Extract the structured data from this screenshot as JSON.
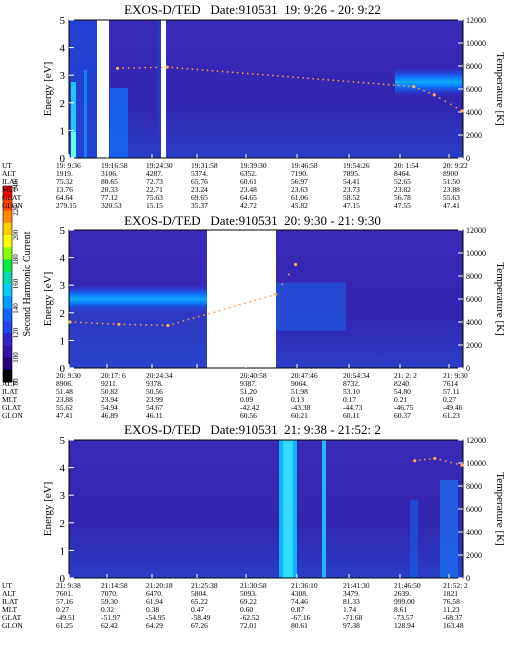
{
  "panels": [
    {
      "title": "EXOS-D/TED   Date:910531  19: 9:26 - 20: 9:22",
      "time_ticks": [
        "19: 9:36",
        "19:16:58",
        "19:24:30",
        "19:31:58",
        "19:39:30",
        "19:46:58",
        "19:54:26",
        "20: 1:54",
        "20: 9:22"
      ],
      "orbit": {
        "ALT": [
          "1919.",
          "3106.",
          "4287.",
          "5374.",
          "6352.",
          "7190.",
          "7895.",
          "8464.",
          "8900"
        ],
        "ILAT": [
          "75.32",
          "80.65",
          "72.73",
          "65.76",
          "60.61",
          "56.97",
          "54.41",
          "52.65",
          "51.50"
        ],
        "MLT": [
          "13.76",
          "20.33",
          "22.71",
          "23.24",
          "23.48",
          "23.63",
          "23.73",
          "23.82",
          "23.88"
        ],
        "GLAT": [
          "64.64",
          "77.12",
          "75.63",
          "69.65",
          "64.65",
          "61.06",
          "58.52",
          "56.78",
          "55.63"
        ],
        "GLON": [
          "279.15",
          "320.53",
          "15.15",
          "35.37",
          "42.72",
          "45.82",
          "47.15",
          "47.55",
          "47.41"
        ]
      }
    },
    {
      "title": "EXOS-D/TED   Date:910531  20: 9:30 - 21: 9:30",
      "time_ticks": [
        "20: 9:30",
        "20:17: 6",
        "20:24:34",
        "",
        "20:40:58",
        "20:47:46",
        "20:54:34",
        "21: 2: 2",
        "21: 9:30"
      ],
      "orbit": {
        "ALT": [
          "8906.",
          "9211.",
          "9378.",
          "",
          "9387.",
          "9064.",
          "8732.",
          "8240.",
          "7614"
        ],
        "ILAT": [
          "51.48",
          "50.82",
          "50.56",
          "",
          "51.20",
          "51.98",
          "53.10",
          "54.80",
          "57.11"
        ],
        "MLT": [
          "23.88",
          "23.94",
          "23.99",
          "",
          "0.09",
          "0.13",
          "0.17",
          "0.21",
          "0.27"
        ],
        "GLAT": [
          "55.62",
          "54.94",
          "54.67",
          "",
          "-42.42",
          "-43.38",
          "-44.73",
          "-46.75",
          "-49.46"
        ],
        "GLON": [
          "47.41",
          "46.89",
          "46.11",
          "",
          "60.56",
          "60.21",
          "60.11",
          "60.37",
          "61.23"
        ]
      }
    },
    {
      "title": "EXOS-D/TED   Date:910531  21: 9:38 - 21:52: 2",
      "time_ticks": [
        "21: 9:38",
        "21:14:58",
        "21:20:18",
        "21:25:38",
        "21:30:58",
        "21:36:10",
        "21:41:30",
        "21:46:50",
        "21:52: 2"
      ],
      "orbit": {
        "ALT": [
          "7601.",
          "7070.",
          "6470.",
          "5804.",
          "5093.",
          "4308.",
          "3479.",
          "2639.",
          "1821"
        ],
        "ILAT": [
          "57.16",
          "59.30",
          "61.94",
          "65.22",
          "69.22",
          "74.46",
          "81.33",
          "999.00",
          "76.58"
        ],
        "MLT": [
          "0.27",
          "0.32",
          "0.38",
          "0.47",
          "0.60",
          "0.87",
          "1.74",
          "8.61",
          "11.23"
        ],
        "GLAT": [
          "-49.51",
          "-51.97",
          "-54.95",
          "-58.49",
          "-62.52",
          "-67.16",
          "-71.68",
          "-73.57",
          "-68.37"
        ],
        "GLON": [
          "61.25",
          "62.42",
          "64.29",
          "67.26",
          "72.01",
          "80.61",
          "97.38",
          "128.94",
          "163.48"
        ]
      }
    }
  ],
  "row_labels": [
    "UT",
    "ALT",
    "ILAT",
    "MLT",
    "GLAT",
    "GLON"
  ],
  "colorbar": {
    "label": "Second Harmonic Current",
    "ticks": [
      "240",
      "220",
      "200",
      "180",
      "160",
      "140",
      "120",
      "100",
      "80"
    ],
    "colors": [
      "#ff0000",
      "#ff4400",
      "#ff8800",
      "#ffcc00",
      "#ffff00",
      "#88ff00",
      "#00ee44",
      "#00ddaa",
      "#00ccff",
      "#0099ff",
      "#1166ff",
      "#2244ee",
      "#3322cc",
      "#3311aa",
      "#220077",
      "#000000"
    ]
  },
  "chart_data": [
    {
      "type": "heatmap",
      "title": "EXOS-D/TED   Date:910531  19: 9:26 - 20: 9:22",
      "ylabel": "Energy [eV]",
      "y2label": "Temperature [K]",
      "ylim": [
        0,
        5
      ],
      "y2lim": [
        0,
        12000
      ],
      "yticks": [
        "0",
        "1",
        "2",
        "3",
        "4",
        "5"
      ],
      "y2ticks": [
        "0",
        "2000",
        "4000",
        "6000",
        "8000",
        "10000",
        "12000"
      ],
      "temperature_series": [
        {
          "x": "19:16:58",
          "y": 7800
        },
        {
          "x": "19:24:30",
          "y": 7900
        },
        {
          "x": "20: 1:54",
          "y": 6200
        },
        {
          "x": "20: 5:00",
          "y": 5500
        },
        {
          "x": "20: 9:22",
          "y": 4100
        }
      ]
    },
    {
      "type": "heatmap",
      "title": "EXOS-D/TED   Date:910531  20: 9:30 - 21: 9:30",
      "ylabel": "Energy [eV]",
      "y2label": "Temperature [K]",
      "ylim": [
        0,
        5
      ],
      "y2lim": [
        0,
        12000
      ],
      "yticks": [
        "0",
        "1",
        "2",
        "3",
        "4",
        "5"
      ],
      "y2ticks": [
        "0",
        "2000",
        "4000",
        "6000",
        "8000",
        "10000",
        "12000"
      ],
      "temperature_series": [
        {
          "x": "20: 9:30",
          "y": 4000
        },
        {
          "x": "20:17: 6",
          "y": 3800
        },
        {
          "x": "20:24:34",
          "y": 3700
        },
        {
          "x": "20:40:58",
          "y": 6400
        },
        {
          "x": "20:44:00",
          "y": 9000
        }
      ]
    },
    {
      "type": "heatmap",
      "title": "EXOS-D/TED   Date:910531  21: 9:38 - 21:52: 2",
      "ylabel": "Energy [eV]",
      "y2label": "Temperature [K]",
      "ylim": [
        0,
        5
      ],
      "y2lim": [
        0,
        12000
      ],
      "yticks": [
        "0",
        "1",
        "2",
        "3",
        "4",
        "5"
      ],
      "y2ticks": [
        "0",
        "2000",
        "4000",
        "6000",
        "8000",
        "10000",
        "12000"
      ],
      "temperature_series": [
        {
          "x": "21:46:50",
          "y": 10200
        },
        {
          "x": "21:49:00",
          "y": 10400
        },
        {
          "x": "21:52: 2",
          "y": 9800
        }
      ]
    }
  ]
}
